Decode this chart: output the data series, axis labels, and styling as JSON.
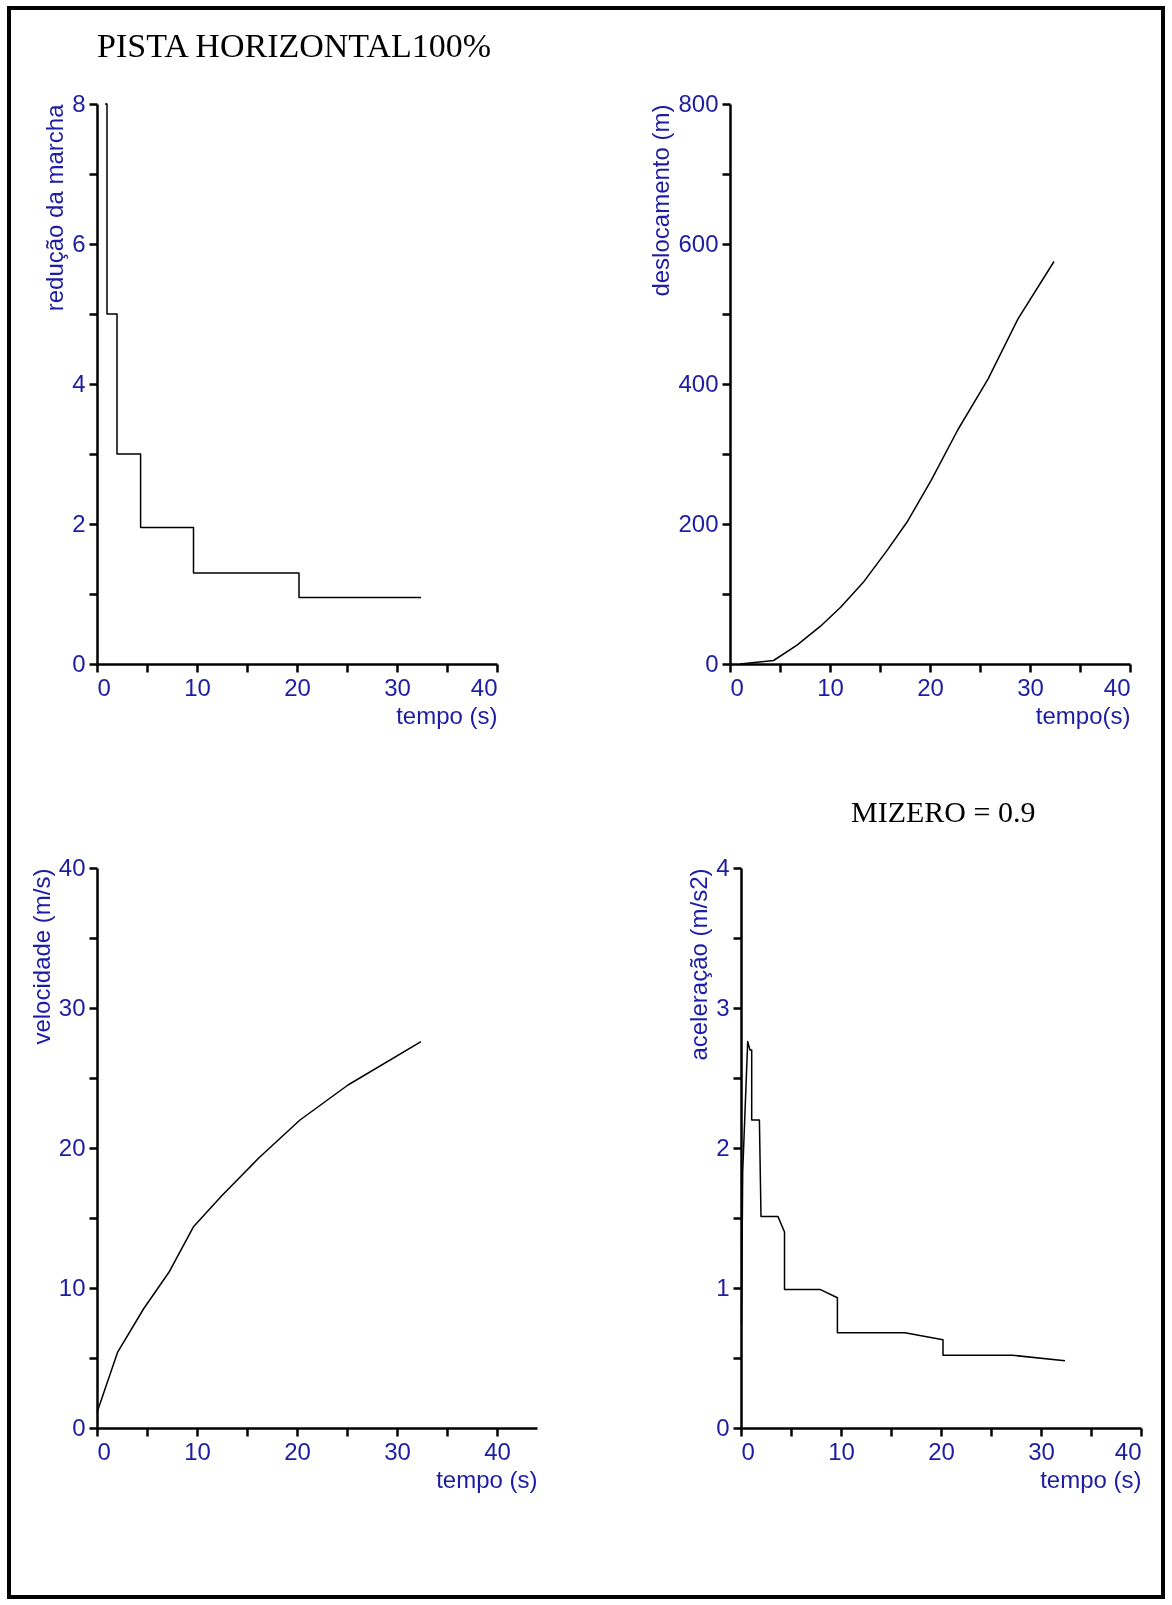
{
  "chart_data": [
    {
      "type": "step",
      "title": "PISTA HORIZONTAL100%",
      "xlabel": "tempo (s)",
      "ylabel": "redução da marcha",
      "color": "#000000",
      "x": [
        0.8,
        1.0,
        2.0,
        4.36,
        9.65,
        20.2,
        32.4
      ],
      "values": [
        8,
        5,
        3,
        1.95,
        1.3,
        0.95,
        0.95
      ],
      "xlim": [
        0,
        40
      ],
      "ylim": [
        0,
        8
      ],
      "xticks": [
        0,
        {
          "value": 5,
          "label": null
        },
        10,
        {
          "value": 15,
          "label": null
        },
        20,
        {
          "value": 25,
          "label": null
        },
        30,
        {
          "value": 35,
          "label": null
        },
        40
      ],
      "yticks": [
        0,
        {
          "value": 1,
          "label": null
        },
        2,
        {
          "value": 3,
          "label": null
        },
        4,
        {
          "value": 5,
          "label": null
        },
        6,
        {
          "value": 7,
          "label": null
        },
        8
      ]
    },
    {
      "type": "line",
      "xlabel": "tempo(s)",
      "ylabel": "deslocamento (m)",
      "color": "#000000",
      "x": [
        1.0,
        4.36,
        6.7,
        9.05,
        11.06,
        13.4,
        15.75,
        17.76,
        20.1,
        22.8,
        25.8,
        28.8,
        32.4
      ],
      "values": [
        0,
        5,
        27,
        54,
        81,
        118,
        163,
        204,
        262,
        335,
        407,
        493,
        575
      ],
      "xlim": [
        0,
        40
      ],
      "ylim": [
        0,
        800
      ],
      "xticks": [
        0,
        {
          "value": 5,
          "label": null
        },
        10,
        {
          "value": 15,
          "label": null
        },
        20,
        {
          "value": 25,
          "label": null
        },
        30,
        {
          "value": 35,
          "label": null
        },
        40
      ],
      "yticks": [
        0,
        {
          "value": 100,
          "label": null
        },
        200,
        {
          "value": 300,
          "label": null
        },
        400,
        {
          "value": 500,
          "label": null
        },
        600,
        {
          "value": 700,
          "label": null
        },
        800
      ]
    },
    {
      "type": "line",
      "xlabel": "tempo (s)",
      "ylabel": "velocidade (m/s)",
      "color": "#000000",
      "x": [
        0,
        2.05,
        4.65,
        7.26,
        9.67,
        12.5,
        16.2,
        20.3,
        25.1,
        32.4
      ],
      "values": [
        1.1,
        5.4,
        8.5,
        11.2,
        14.4,
        16.6,
        19.3,
        22.0,
        24.5,
        27.6
      ],
      "xlim": [
        0,
        44
      ],
      "ylim": [
        0,
        40
      ],
      "xticks": [
        0,
        {
          "value": 5,
          "label": null
        },
        10,
        {
          "value": 15,
          "label": null
        },
        20,
        {
          "value": 25,
          "label": null
        },
        30,
        {
          "value": 35,
          "label": null
        },
        40
      ],
      "yticks": [
        0,
        {
          "value": 5,
          "label": null
        },
        10,
        {
          "value": 15,
          "label": null
        },
        20,
        {
          "value": 25,
          "label": null
        },
        30,
        {
          "value": 35,
          "label": null
        },
        40
      ]
    },
    {
      "type": "line",
      "xlabel": "tempo (s)",
      "ylabel": "aceleração (m/s2)",
      "color": "#000000",
      "annotations": [
        "MIZERO = 0.9"
      ],
      "x": [
        0.05,
        0.17,
        0.67,
        0.9,
        1.07,
        1.07,
        1.84,
        2.0,
        3.7,
        4.35,
        4.35,
        7.9,
        9.64,
        9.64,
        16.4,
        20.2,
        20.2,
        27.1,
        32.4
      ],
      "values": [
        0.75,
        1.83,
        2.76,
        2.7,
        2.7,
        2.2,
        2.2,
        1.51,
        1.51,
        1.4,
        0.99,
        0.99,
        0.93,
        0.68,
        0.68,
        0.63,
        0.52,
        0.52,
        0.48
      ],
      "xlim": [
        0,
        40
      ],
      "ylim": [
        0,
        4
      ],
      "xticks": [
        0,
        {
          "value": 5,
          "label": null
        },
        10,
        {
          "value": 15,
          "label": null
        },
        20,
        {
          "value": 25,
          "label": null
        },
        30,
        {
          "value": 35,
          "label": null
        },
        40
      ],
      "yticks": [
        0,
        {
          "value": 0.5,
          "label": null
        },
        1,
        {
          "value": 1.5,
          "label": null
        },
        2,
        {
          "value": 2.5,
          "label": null
        },
        3,
        {
          "value": 3.5,
          "label": null
        },
        4
      ]
    }
  ]
}
